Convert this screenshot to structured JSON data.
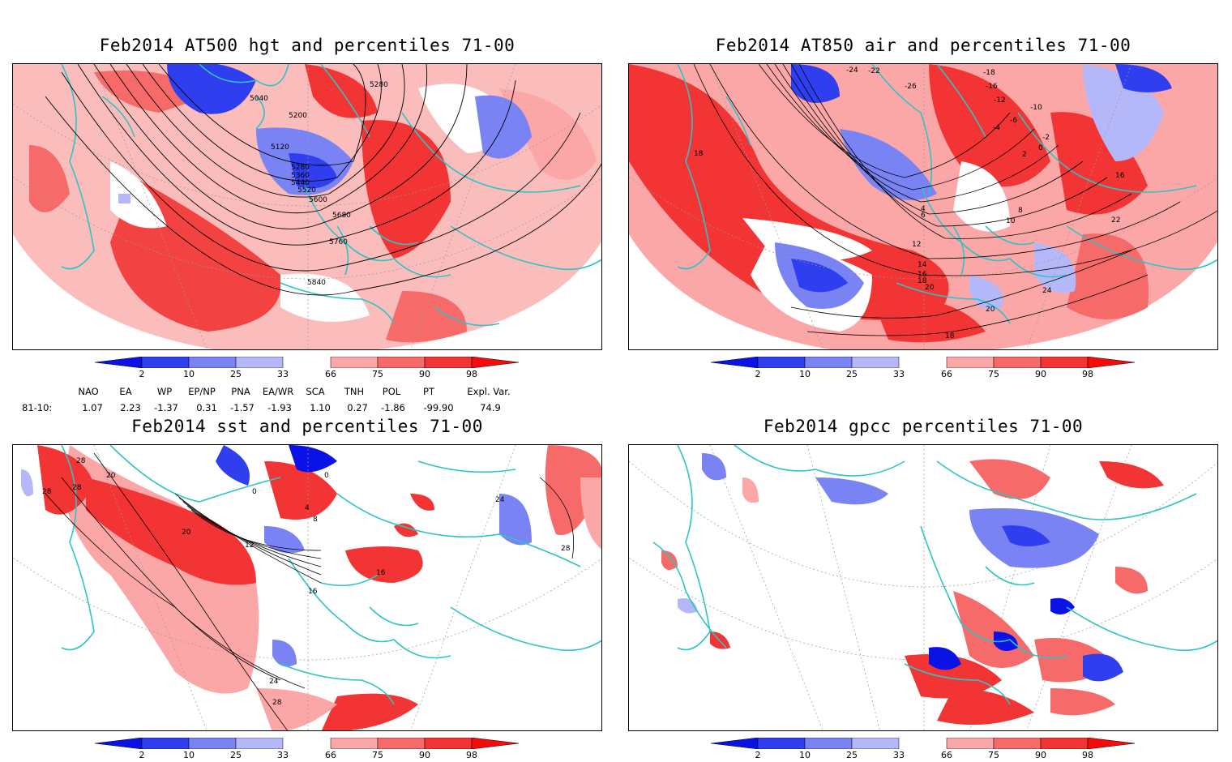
{
  "panels": [
    {
      "title": "Feb2014 AT500 hgt and percentiles 71-00",
      "contour_labels": [
        "5040",
        "5200",
        "5280",
        "5120",
        "5280",
        "5360",
        "5440",
        "5520",
        "5600",
        "5680",
        "5760",
        "5840"
      ]
    },
    {
      "title": "Feb2014 AT850 air and percentiles 71-00",
      "contour_labels": [
        "-24",
        "-22",
        "-26",
        "-18",
        "-16",
        "-12",
        "-10",
        "-6",
        "-4",
        "-2",
        "0",
        "2",
        "4",
        "6",
        "8",
        "10",
        "12",
        "14",
        "16",
        "18",
        "20",
        "22",
        "24",
        "20",
        "18",
        "16",
        "18"
      ]
    },
    {
      "title": "Feb2014 sst and percentiles 71-00",
      "contour_labels": [
        "28",
        "28",
        "20",
        "28",
        "0",
        "0",
        "4",
        "8",
        "12",
        "16",
        "16",
        "20",
        "24",
        "24",
        "28",
        "28"
      ]
    },
    {
      "title": "Feb2014 gpcc percentiles 71-00",
      "contour_labels": []
    }
  ],
  "colorbar": {
    "ticks": [
      "2",
      "10",
      "25",
      "33",
      "66",
      "75",
      "90",
      "98"
    ],
    "colors": {
      "below_2": "#0a12e6",
      "b2_10": "#2f3ff0",
      "b10_25": "#7a83f4",
      "b25_33": "#b4b8f8",
      "mid": "#ffffff",
      "a66_75": "#fca7a7",
      "a75_90": "#f66a6a",
      "a90_98": "#f23434",
      "above_98": "#f60a0a"
    }
  },
  "teleconnections": {
    "row_label": "81-10:",
    "names": [
      "NAO",
      "EA",
      "WP",
      "EP/NP",
      "PNA",
      "EA/WR",
      "SCA",
      "TNH",
      "POL",
      "PT",
      "Expl. Var."
    ],
    "values": [
      "1.07",
      "2.23",
      "-1.37",
      "0.31",
      "-1.57",
      "-1.93",
      "1.10",
      "0.27",
      "-1.86",
      "-99.90",
      "74.9"
    ]
  },
  "colors": {
    "coast": "#2ec4c4",
    "contour": "#000000",
    "grid": "#999999"
  }
}
